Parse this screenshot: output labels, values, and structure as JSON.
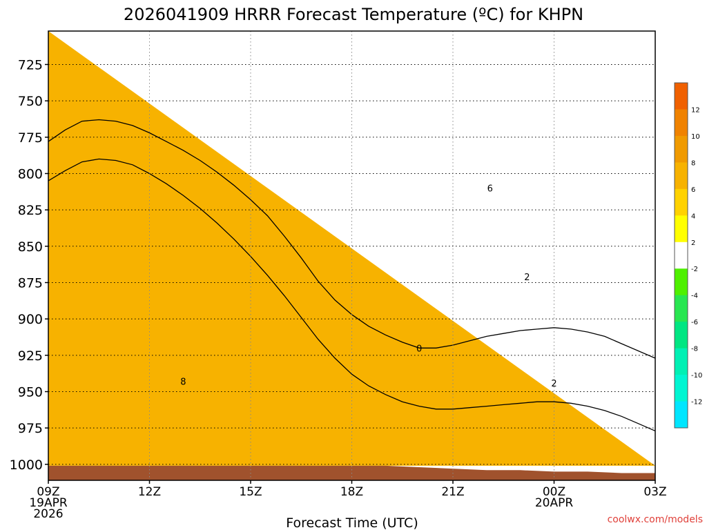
{
  "chart_data": {
    "type": "contour",
    "title": "2026041909 HRRR Forecast Temperature (ºC) for KHPN",
    "xlabel": "Forecast Time (UTC)",
    "ylabel": "",
    "credit": "coolwx.com/models",
    "x_ticks": [
      {
        "hour": 0,
        "lines": [
          "09Z",
          "19APR",
          "2026"
        ]
      },
      {
        "hour": 3,
        "lines": [
          "12Z"
        ]
      },
      {
        "hour": 6,
        "lines": [
          "15Z"
        ]
      },
      {
        "hour": 9,
        "lines": [
          "18Z"
        ]
      },
      {
        "hour": 12,
        "lines": [
          "21Z"
        ]
      },
      {
        "hour": 15,
        "lines": [
          "00Z",
          "20APR"
        ]
      },
      {
        "hour": 18,
        "lines": [
          "03Z"
        ]
      }
    ],
    "xlim": [
      0,
      18
    ],
    "y_ticks": [
      "725",
      "750",
      "775",
      "800",
      "825",
      "850",
      "875",
      "900",
      "925",
      "950",
      "975",
      "1000"
    ],
    "ylim": [
      1011,
      702
    ],
    "ground_pressure": [
      1001,
      1001,
      1001,
      1001,
      1001,
      1001,
      1001,
      1001,
      1001,
      1001,
      1001,
      1002,
      1003,
      1004,
      1004,
      1005,
      1005,
      1006,
      1006
    ],
    "colorbar": {
      "bins": [
        {
          "lo": 12,
          "hi": 14,
          "color": "#f06000"
        },
        {
          "lo": 10,
          "hi": 12,
          "color": "#f08200"
        },
        {
          "lo": 8,
          "hi": 10,
          "color": "#f09a00"
        },
        {
          "lo": 6,
          "hi": 8,
          "color": "#f7b200"
        },
        {
          "lo": 4,
          "hi": 6,
          "color": "#ffd200"
        },
        {
          "lo": 2,
          "hi": 4,
          "color": "#ffff00"
        },
        {
          "lo": -2,
          "hi": 2,
          "color": "#ffffff"
        },
        {
          "lo": -4,
          "hi": -2,
          "color": "#4ef000"
        },
        {
          "lo": -6,
          "hi": -4,
          "color": "#28e650"
        },
        {
          "lo": -8,
          "hi": -6,
          "color": "#00e682"
        },
        {
          "lo": -10,
          "hi": -8,
          "color": "#00f0b4"
        },
        {
          "lo": -12,
          "hi": -10,
          "color": "#00f5d2"
        },
        {
          "lo": -14,
          "hi": -12,
          "color": "#00e6ff"
        }
      ],
      "tick_labels": [
        "12",
        "10",
        "8",
        "6",
        "4",
        "2",
        "-2",
        "-4",
        "-6",
        "-8",
        "-10",
        "-12"
      ]
    },
    "contour_labels": [
      {
        "text": "8",
        "hour": 4.0,
        "pressure": 943
      },
      {
        "text": "0",
        "hour": 11.0,
        "pressure": 920
      },
      {
        "text": "2",
        "hour": 15.0,
        "pressure": 944
      },
      {
        "text": "2",
        "hour": 14.2,
        "pressure": 871
      },
      {
        "text": "6",
        "hour": 13.1,
        "pressure": 810
      }
    ],
    "filled_regions": [
      {
        "fill": "#ffff00",
        "hour": [
          0,
          8,
          9,
          10,
          11,
          12,
          13,
          14,
          15,
          16,
          17,
          18
        ],
        "pressure": [
          1001,
          1001,
          1001,
          1001,
          1001,
          1001,
          1001,
          1001,
          1001,
          1001,
          1001,
          1001
        ]
      },
      {
        "fill": "#f7b200",
        "hour": [
          0,
          0,
          0,
          1.0,
          2.0,
          3.0,
          4.0,
          5.0,
          6.0,
          6.5,
          7.0,
          8.0,
          9.0,
          10.0,
          11.0,
          12.0,
          13.0,
          14.0,
          15.0,
          16.0,
          17.0,
          18.0
        ],
        "pressure": [
          702,
          745,
          1001,
          1001,
          1001,
          1001,
          1001,
          1001,
          1001,
          1001,
          1001,
          1001,
          1001,
          1001,
          1001,
          1001,
          1001,
          1001,
          1001,
          1001,
          1001,
          1001
        ]
      }
    ],
    "contour_lines": [
      {
        "level": 6,
        "style": "solid",
        "hour": [
          0,
          0.5,
          1.0,
          1.5,
          2.0,
          2.5,
          3.0,
          3.5,
          4.0,
          4.5,
          5.0,
          5.5,
          6.0,
          6.5,
          7.0,
          7.5,
          8.0,
          8.5,
          9.0,
          9.5,
          10.0,
          10.5,
          11.0,
          11.5,
          12.0,
          12.5,
          13.0,
          13.5,
          14.0,
          14.5,
          15.0,
          15.5,
          16.0,
          16.5,
          17.0,
          17.5,
          18.0
        ],
        "pressure": [
          778,
          770,
          764,
          763,
          764,
          767,
          772,
          778,
          784,
          791,
          799,
          808,
          818,
          829,
          843,
          858,
          874,
          887,
          897,
          905,
          911,
          916,
          920,
          920,
          918,
          915,
          912,
          910,
          908,
          907,
          906,
          907,
          909,
          912,
          917,
          922,
          927
        ]
      },
      {
        "level": 4,
        "style": "solid",
        "hour": [
          0,
          0.5,
          1.0,
          1.5,
          2.0,
          2.5,
          3.0,
          3.5,
          4.0,
          4.5,
          5.0,
          5.5,
          6.0,
          6.5,
          7.0,
          7.5,
          8.0,
          8.5,
          9.0,
          9.5,
          10.0,
          10.5,
          11.0,
          11.5,
          12.0,
          12.5,
          13.0,
          13.5,
          14.0,
          14.5,
          15.0,
          15.5,
          16.0,
          16.5,
          17.0,
          17.5,
          18.0
        ],
        "pressure": [
          805,
          798,
          792,
          790,
          791,
          794,
          800,
          807,
          815,
          824,
          834,
          845,
          857,
          870,
          884,
          899,
          914,
          927,
          938,
          946,
          952,
          957,
          960,
          962,
          962,
          961,
          960,
          959,
          958,
          957,
          957,
          958,
          960,
          963,
          967,
          972,
          977
        ]
      }
    ]
  }
}
